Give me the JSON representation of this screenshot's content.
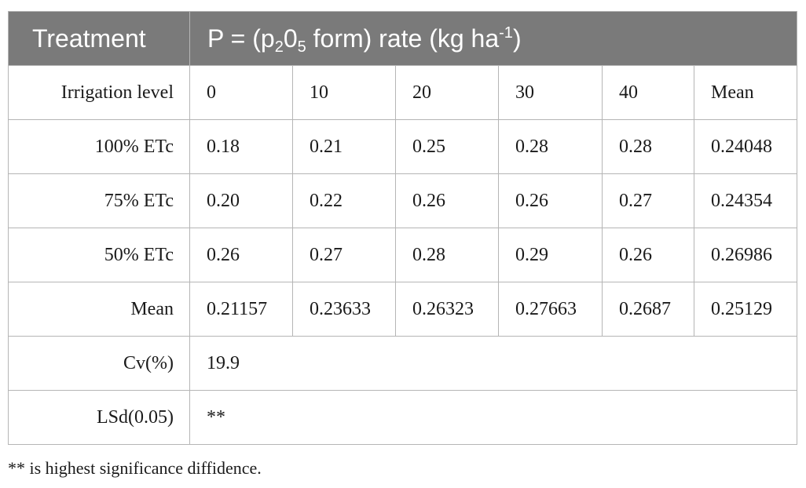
{
  "header": {
    "treatment": "Treatment",
    "rate_prefix": "P = (p",
    "rate_sub1": "2",
    "rate_mid": "0",
    "rate_sub2": "5",
    "rate_rest": " form) rate (kg ha",
    "rate_sup": "-1",
    "rate_close": ")"
  },
  "columns": [
    "Irrigation level",
    "0",
    "10",
    "20",
    "30",
    "40",
    "Mean"
  ],
  "rows": [
    {
      "label": "100% ETc",
      "values": [
        "0.18",
        "0.21",
        "0.25",
        "0.28",
        "0.28",
        "0.24048"
      ]
    },
    {
      "label": "75% ETc",
      "values": [
        "0.20",
        "0.22",
        "0.26",
        "0.26",
        "0.27",
        "0.24354"
      ]
    },
    {
      "label": "50% ETc",
      "values": [
        "0.26",
        "0.27",
        "0.28",
        "0.29",
        "0.26",
        "0.26986"
      ]
    },
    {
      "label": "Mean",
      "values": [
        "0.21157",
        "0.23633",
        "0.26323",
        "0.27663",
        "0.2687",
        "0.25129"
      ]
    }
  ],
  "cv": {
    "label": "Cv(%)",
    "value": "19.9"
  },
  "lsd": {
    "label": "LSd(0.05)",
    "value": "**"
  },
  "footnote": "** is highest significance diffidence."
}
